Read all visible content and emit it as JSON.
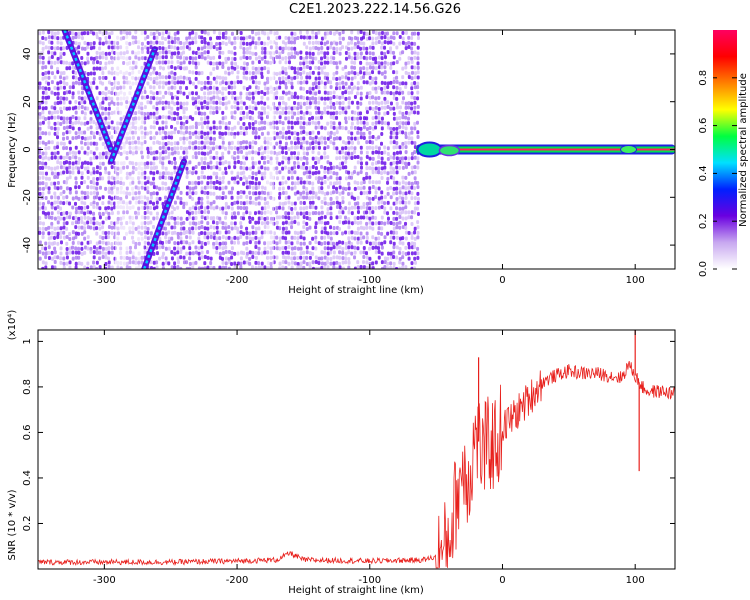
{
  "title": "C2E1.2023.222.14.56.G26",
  "chart_data": [
    {
      "type": "heatmap",
      "xlabel": "Height of straight line (km)",
      "ylabel": "Frequency (Hz)",
      "xlim": [
        -350,
        130
      ],
      "ylim": [
        -50,
        50
      ],
      "x_ticks": [
        -300,
        -200,
        -100,
        0,
        100
      ],
      "y_ticks": [
        -40,
        -20,
        0,
        20,
        40
      ],
      "colorbar": {
        "label": "Normalized spectral amplitude",
        "range": [
          0.0,
          1.0
        ],
        "ticks": [
          "0.0",
          "0.2",
          "0.4",
          "0.6",
          "0.8"
        ],
        "colors": [
          "#ffffff",
          "#c8a8f0",
          "#6a00e0",
          "#0020ff",
          "#00e0ff",
          "#00ff40",
          "#ffff00",
          "#ff8000",
          "#ff0000",
          "#ff0060"
        ]
      },
      "features": {
        "noise_region_x": [
          -350,
          -65
        ],
        "carrier_line_x": [
          -65,
          130
        ],
        "carrier_line_freq": 0,
        "diagonal_tracks": [
          {
            "x": [
              -330,
              -295
            ],
            "y": [
              50,
              0
            ]
          },
          {
            "x": [
              -295,
              -262
            ],
            "y": [
              -5,
              42
            ]
          },
          {
            "x": [
              -270,
              -240
            ],
            "y": [
              -50,
              -5
            ]
          }
        ]
      }
    },
    {
      "type": "line",
      "xlabel": "Height of straight line (km)",
      "ylabel": "SNR (10 * v/v)",
      "y_scale_label": "(x10⁴)",
      "xlim": [
        -350,
        130
      ],
      "ylim": [
        0,
        1.05
      ],
      "x_ticks": [
        -300,
        -200,
        -100,
        0,
        100
      ],
      "y_ticks": [
        0.2,
        0.4,
        0.6,
        0.8,
        1.0
      ],
      "color": "#e8201c",
      "series": [
        {
          "x": [
            -350,
            -300,
            -250,
            -200,
            -170,
            -160,
            -150,
            -100,
            -60,
            -45,
            -40,
            -35,
            -30,
            -25,
            -20,
            -15,
            -10,
            -5,
            0,
            10,
            20,
            30,
            40,
            50,
            60,
            70,
            80,
            90,
            95,
            100,
            105,
            110,
            120,
            130
          ],
          "values": [
            0.03,
            0.03,
            0.03,
            0.035,
            0.04,
            0.07,
            0.04,
            0.035,
            0.04,
            0.06,
            0.15,
            0.3,
            0.45,
            0.4,
            0.6,
            0.5,
            0.55,
            0.55,
            0.62,
            0.68,
            0.75,
            0.82,
            0.85,
            0.87,
            0.86,
            0.86,
            0.85,
            0.84,
            0.9,
            0.85,
            0.8,
            0.78,
            0.78,
            0.77
          ]
        }
      ],
      "spikes": [
        {
          "x": -18,
          "value": 0.93
        },
        {
          "x": 100,
          "value": 1.05
        },
        {
          "x": 103,
          "value": 0.43
        }
      ]
    }
  ]
}
